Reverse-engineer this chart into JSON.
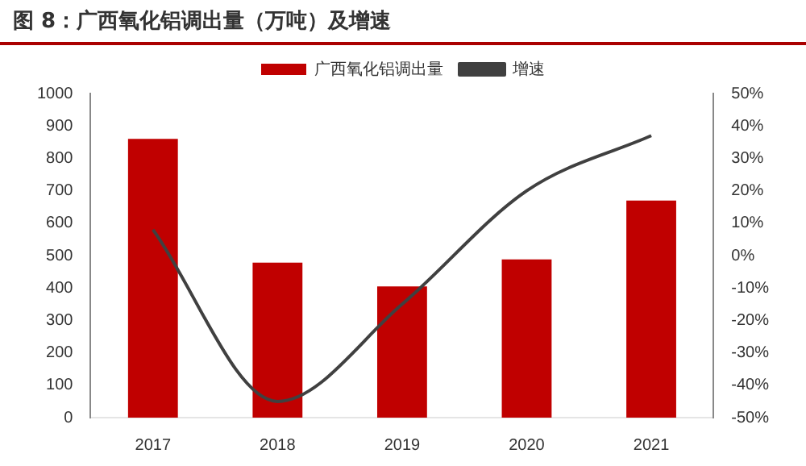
{
  "chart_data": {
    "type": "bar",
    "title": "图 8：广西氧化铝调出量（万吨）及增速",
    "categories": [
      "2017",
      "2018",
      "2019",
      "2020",
      "2021"
    ],
    "series": [
      {
        "name": "广西氧化铝调出量",
        "color": "#c00000",
        "values": [
          860,
          478,
          405,
          488,
          670
        ]
      },
      {
        "name": "增速",
        "type": "line",
        "axis": "y2",
        "color": "#404040",
        "values": [
          8,
          -45,
          -15,
          20,
          37
        ]
      }
    ],
    "ylim": [
      0,
      1000
    ],
    "yticks": [
      0,
      100,
      200,
      300,
      400,
      500,
      600,
      700,
      800,
      900,
      1000
    ],
    "y2lim": [
      -50,
      50
    ],
    "y2ticks": [
      {
        "value": -50,
        "label": "-50%"
      },
      {
        "value": -40,
        "label": "-40%"
      },
      {
        "value": -30,
        "label": "-30%"
      },
      {
        "value": -20,
        "label": "-20%"
      },
      {
        "value": -10,
        "label": "-10%"
      },
      {
        "value": 0,
        "label": "0%"
      },
      {
        "value": 10,
        "label": "10%"
      },
      {
        "value": 20,
        "label": "20%"
      },
      {
        "value": 30,
        "label": "30%"
      },
      {
        "value": 40,
        "label": "40%"
      },
      {
        "value": 50,
        "label": "50%"
      }
    ],
    "legend": "top",
    "grid": false,
    "marker": "none"
  }
}
